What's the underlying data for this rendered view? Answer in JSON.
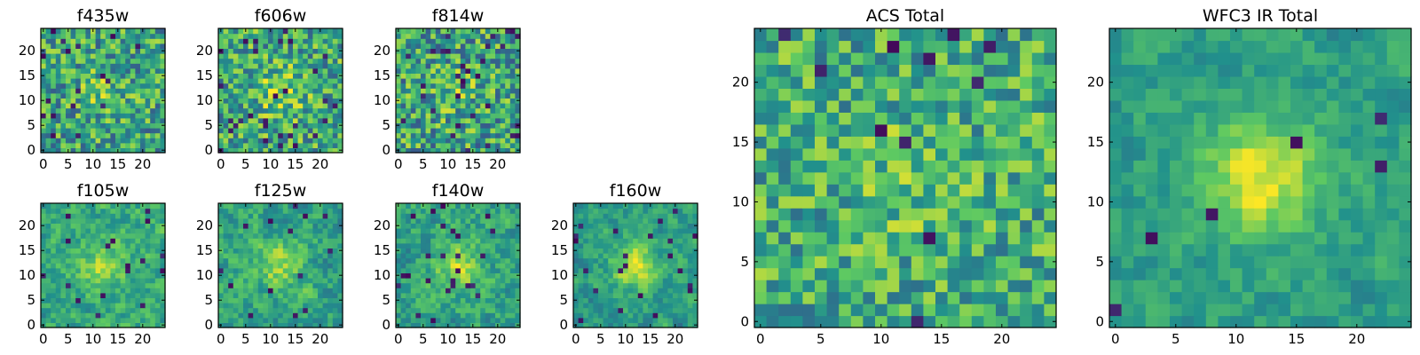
{
  "colormap": [
    "#440154",
    "#3b528b",
    "#21918c",
    "#5ec962",
    "#fde725"
  ],
  "chart_data": [
    {
      "type": "heatmap",
      "title": "f435w",
      "nx": 25,
      "ny": 25,
      "x_ticks": [
        "0",
        "5",
        "10",
        "15",
        "20"
      ],
      "y_ticks": [
        "0",
        "5",
        "10",
        "15",
        "20"
      ],
      "seed": 11,
      "blob": 0.15,
      "smooth": 0,
      "dark": 0.04,
      "base": 0.58,
      "noise": 0.3
    },
    {
      "type": "heatmap",
      "title": "f606w",
      "nx": 25,
      "ny": 25,
      "x_ticks": [
        "0",
        "5",
        "10",
        "15",
        "20"
      ],
      "y_ticks": [
        "0",
        "5",
        "10",
        "15",
        "20"
      ],
      "seed": 23,
      "blob": 0.22,
      "smooth": 0,
      "dark": 0.04,
      "base": 0.6,
      "noise": 0.3
    },
    {
      "type": "heatmap",
      "title": "f814w",
      "nx": 25,
      "ny": 25,
      "x_ticks": [
        "0",
        "5",
        "10",
        "15",
        "20"
      ],
      "y_ticks": [
        "0",
        "5",
        "10",
        "15",
        "20"
      ],
      "seed": 37,
      "blob": 0.12,
      "smooth": 0,
      "dark": 0.05,
      "base": 0.58,
      "noise": 0.32
    },
    {
      "type": "heatmap",
      "title": "f105w",
      "nx": 25,
      "ny": 25,
      "x_ticks": [
        "0",
        "5",
        "10",
        "15",
        "20"
      ],
      "y_ticks": [
        "0",
        "5",
        "10",
        "15",
        "20"
      ],
      "seed": 41,
      "blob": 0.25,
      "smooth": 0.5,
      "dark": 0.02,
      "base": 0.6,
      "noise": 0.25
    },
    {
      "type": "heatmap",
      "title": "f125w",
      "nx": 25,
      "ny": 25,
      "x_ticks": [
        "0",
        "5",
        "10",
        "15",
        "20"
      ],
      "y_ticks": [
        "0",
        "5",
        "10",
        "15",
        "20"
      ],
      "seed": 53,
      "blob": 0.25,
      "smooth": 0.5,
      "dark": 0.03,
      "base": 0.58,
      "noise": 0.26
    },
    {
      "type": "heatmap",
      "title": "f140w",
      "nx": 25,
      "ny": 25,
      "x_ticks": [
        "0",
        "5",
        "10",
        "15",
        "20"
      ],
      "y_ticks": [
        "0",
        "5",
        "10",
        "15",
        "20"
      ],
      "seed": 67,
      "blob": 0.28,
      "smooth": 0.5,
      "dark": 0.03,
      "base": 0.58,
      "noise": 0.26
    },
    {
      "type": "heatmap",
      "title": "f160w",
      "nx": 25,
      "ny": 25,
      "x_ticks": [
        "0",
        "5",
        "10",
        "15",
        "20"
      ],
      "y_ticks": [
        "0",
        "5",
        "10",
        "15",
        "20"
      ],
      "seed": 79,
      "blob": 0.4,
      "smooth": 0.6,
      "dark": 0.05,
      "base": 0.55,
      "noise": 0.25
    },
    {
      "type": "heatmap",
      "title": "ACS Total",
      "nx": 25,
      "ny": 25,
      "x_ticks": [
        "0",
        "5",
        "10",
        "15",
        "20"
      ],
      "y_ticks": [
        "0",
        "5",
        "10",
        "15",
        "20"
      ],
      "seed": 97,
      "blob": 0.1,
      "smooth": 0,
      "dark": 0.025,
      "base": 0.62,
      "noise": 0.26
    },
    {
      "type": "heatmap",
      "title": "WFC3 IR Total",
      "nx": 25,
      "ny": 25,
      "x_ticks": [
        "0",
        "5",
        "10",
        "15",
        "20"
      ],
      "y_ticks": [
        "0",
        "5",
        "10",
        "15",
        "20"
      ],
      "seed": 113,
      "blob": 0.4,
      "smooth": 0.5,
      "dark": 0.015,
      "base": 0.56,
      "noise": 0.18
    }
  ]
}
